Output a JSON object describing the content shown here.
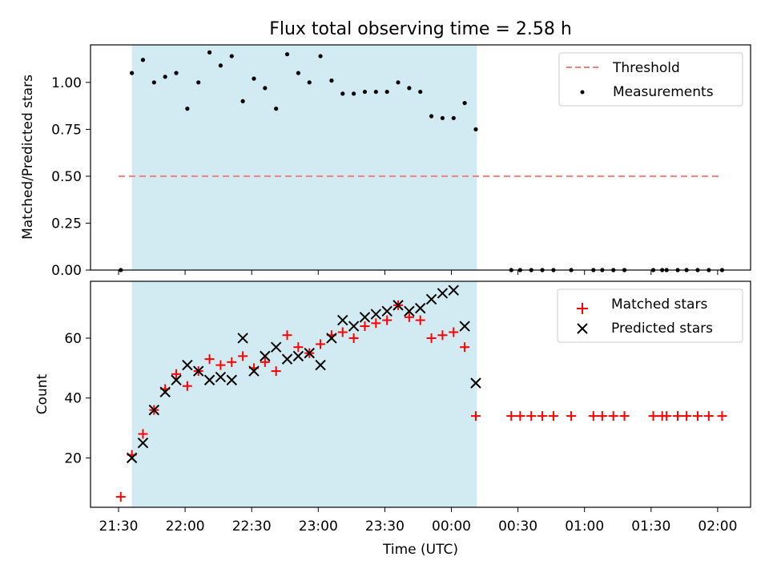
{
  "title": "Flux total observing time = 2.58 h",
  "xlabel": "Time (UTC)",
  "xtick_labels": [
    "21:30",
    "22:00",
    "22:30",
    "23:00",
    "23:30",
    "00:00",
    "00:30",
    "01:00",
    "01:30",
    "02:00"
  ],
  "colors": {
    "threshold": "#f08080",
    "measurements": "#000000",
    "matched": "#ff0000",
    "predicted": "#000000",
    "shade": "#add8e6"
  },
  "chart_data": [
    {
      "type": "scatter",
      "ylabel": "Matched/Predicted stars",
      "ylim": [
        0,
        1.2
      ],
      "x_unit": "minutes after 21:30 UTC",
      "shaded_region": [
        6,
        161.5
      ],
      "legend": {
        "position": "top-right",
        "entries": [
          "Threshold",
          "Measurements"
        ]
      },
      "yticks": [
        0.0,
        0.25,
        0.5,
        0.75,
        1.0
      ],
      "ytick_labels": [
        "0.00",
        "0.25",
        "0.50",
        "0.75",
        "1.00"
      ],
      "series": [
        {
          "name": "Threshold",
          "kind": "dashed-line",
          "x": [
            0,
            271
          ],
          "y": [
            0.5,
            0.5
          ]
        },
        {
          "name": "Measurements",
          "kind": "dot",
          "x": [
            1,
            6,
            11,
            16,
            21,
            26,
            31,
            36,
            41,
            46,
            51,
            56,
            61,
            66,
            71,
            76,
            81,
            86,
            91,
            96,
            101,
            106,
            111,
            116,
            121,
            126,
            131,
            136,
            141,
            146,
            151,
            156,
            161,
            177,
            181,
            186,
            191,
            196,
            204,
            214,
            218,
            223,
            228,
            241,
            245,
            247,
            252,
            256,
            261,
            266,
            272
          ],
          "y": [
            0.0,
            1.05,
            1.12,
            1.0,
            1.03,
            1.05,
            0.86,
            1.0,
            1.16,
            1.09,
            1.14,
            0.9,
            1.02,
            0.97,
            0.86,
            1.15,
            1.05,
            1.0,
            1.14,
            1.01,
            0.94,
            0.94,
            0.95,
            0.95,
            0.95,
            1.0,
            0.97,
            0.95,
            0.82,
            0.81,
            0.81,
            0.89,
            0.75,
            0,
            0,
            0,
            0,
            0,
            0,
            0,
            0,
            0,
            0,
            0,
            0,
            0,
            0,
            0,
            0,
            0,
            0
          ]
        }
      ]
    },
    {
      "type": "scatter",
      "ylabel": "Count",
      "ylim": [
        3.5,
        79
      ],
      "x_unit": "minutes after 21:30 UTC",
      "shaded_region": [
        6,
        161.5
      ],
      "legend": {
        "position": "top-right",
        "entries": [
          "Matched stars",
          "Predicted stars"
        ]
      },
      "yticks": [
        20,
        40,
        60
      ],
      "ytick_labels": [
        "20",
        "40",
        "60"
      ],
      "series": [
        {
          "name": "Matched stars",
          "marker": "plus",
          "x": [
            1,
            6,
            11,
            16,
            21,
            26,
            31,
            36,
            41,
            46,
            51,
            56,
            61,
            66,
            71,
            76,
            81,
            86,
            91,
            96,
            101,
            106,
            111,
            116,
            121,
            126,
            131,
            136,
            141,
            146,
            151,
            156,
            161,
            177,
            181,
            186,
            191,
            196,
            204,
            214,
            218,
            223,
            228,
            241,
            245,
            247,
            252,
            256,
            261,
            266,
            272
          ],
          "y": [
            7,
            21,
            28,
            36,
            43,
            48,
            44,
            49,
            53,
            51,
            52,
            54,
            50,
            52,
            49,
            61,
            57,
            55,
            58,
            61,
            62,
            60,
            64,
            65,
            66,
            71,
            67,
            66,
            60,
            61,
            62,
            57,
            34,
            34,
            34,
            34,
            34,
            34,
            34,
            34,
            34,
            34,
            34,
            34,
            34,
            34,
            34,
            34,
            34,
            34,
            34
          ]
        },
        {
          "name": "Predicted stars",
          "marker": "x",
          "x": [
            6,
            11,
            16,
            21,
            26,
            31,
            36,
            41,
            46,
            51,
            56,
            61,
            66,
            71,
            76,
            81,
            86,
            91,
            96,
            101,
            106,
            111,
            116,
            121,
            126,
            131,
            136,
            141,
            146,
            151,
            156,
            161
          ],
          "y": [
            20,
            25,
            36,
            42,
            46,
            51,
            49,
            46,
            47,
            46,
            60,
            49,
            54,
            57,
            53,
            54,
            55,
            51,
            60,
            66,
            64,
            67,
            68,
            69,
            71,
            69,
            70,
            73,
            75,
            76,
            64,
            45
          ]
        }
      ]
    }
  ]
}
